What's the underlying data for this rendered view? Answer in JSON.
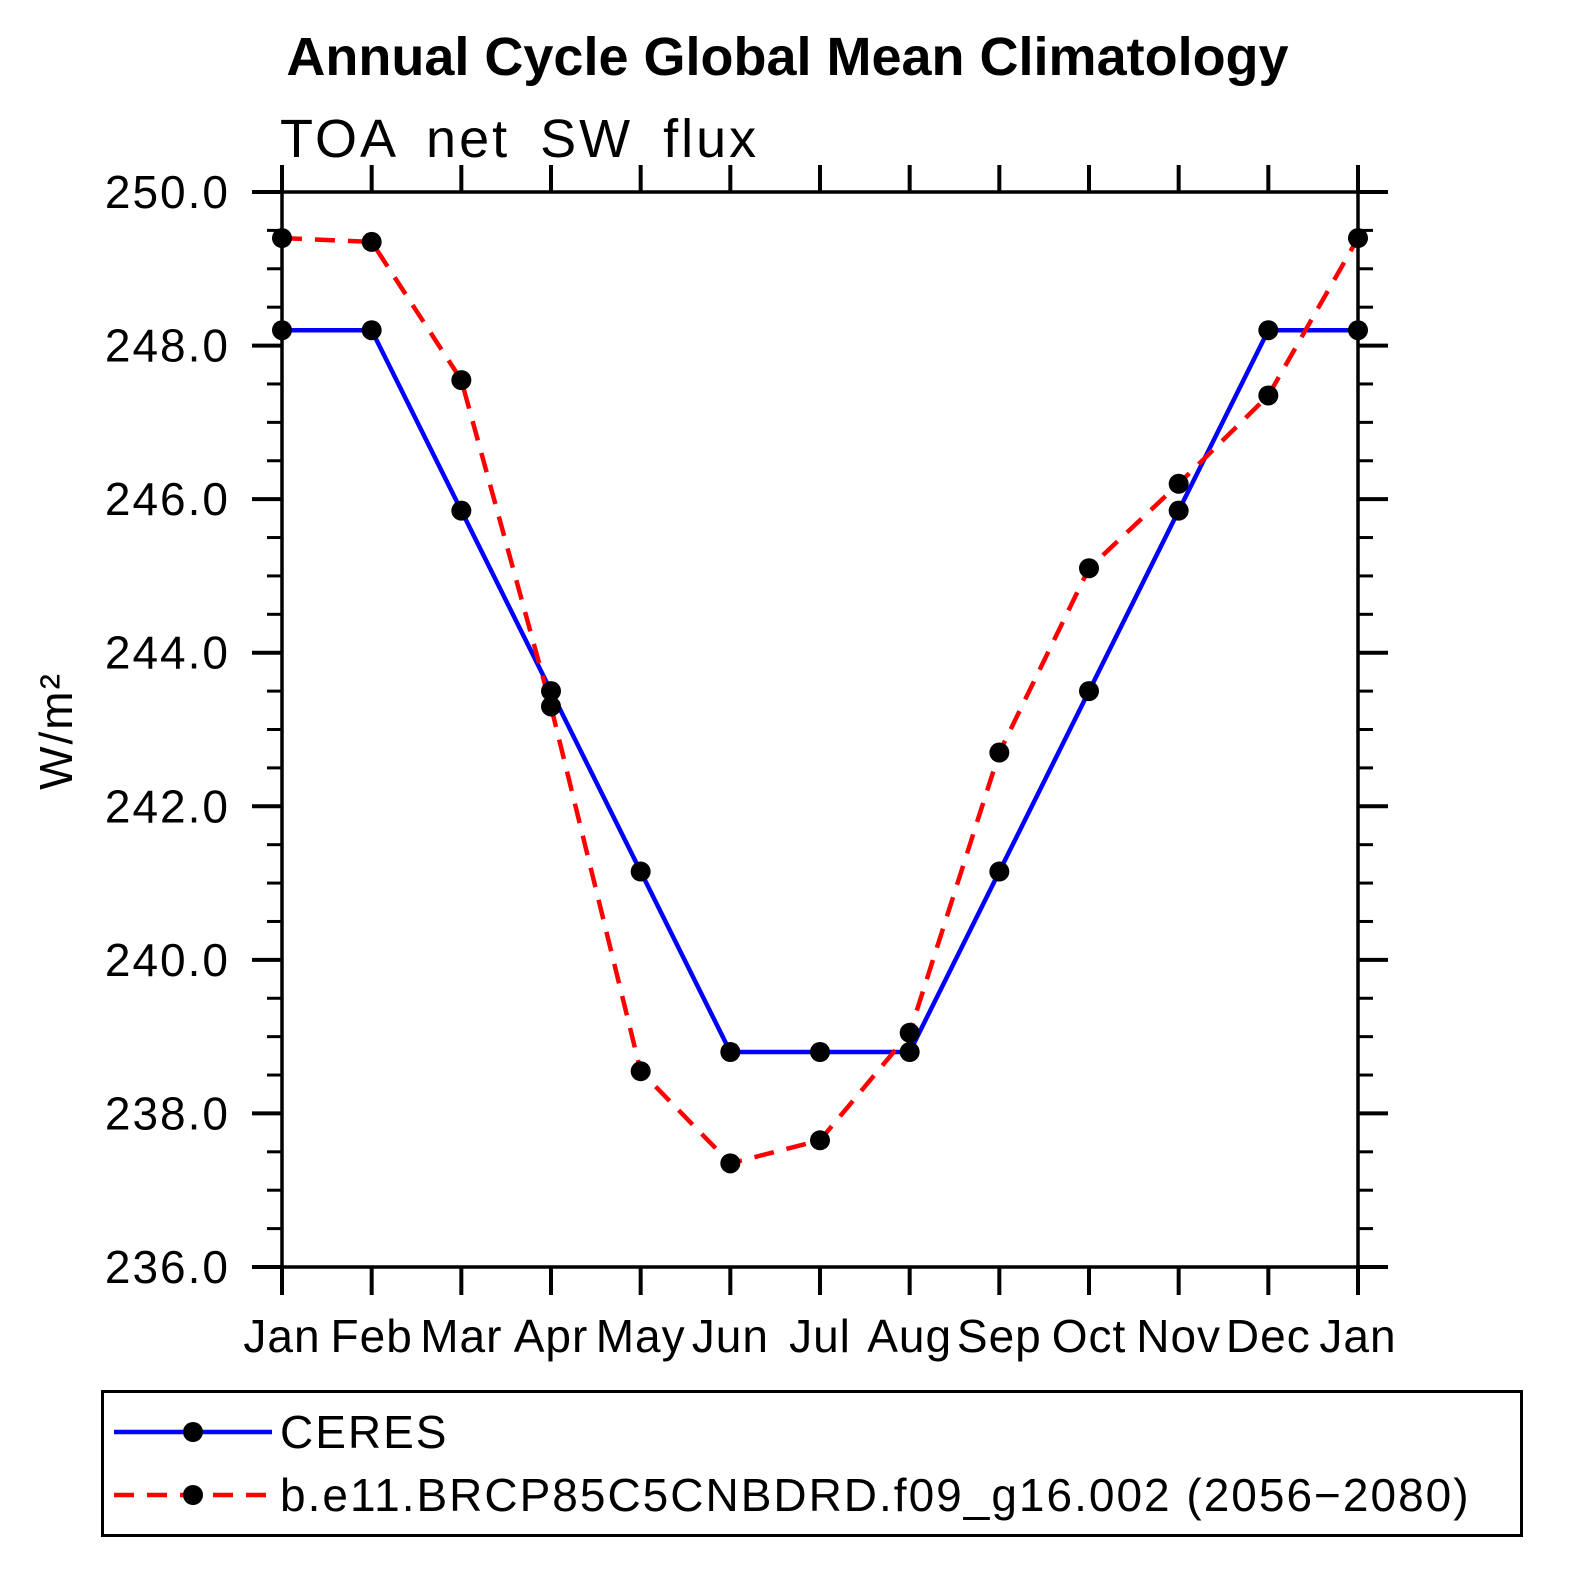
{
  "title": "Annual Cycle Global Mean Climatology",
  "chart_data": {
    "type": "line",
    "subtitle": "TOA net SW flux",
    "ylabel": "W/m²",
    "xlabel": "",
    "categories": [
      "Jan",
      "Feb",
      "Mar",
      "Apr",
      "May",
      "Jun",
      "Jul",
      "Aug",
      "Sep",
      "Oct",
      "Nov",
      "Dec",
      "Jan"
    ],
    "ylim": [
      236.0,
      250.0
    ],
    "ytick_step": 2.0,
    "yminor_step": 0.5,
    "ytick_decimals": 1,
    "grid": false,
    "axis_color": "#000000",
    "background_color": "#ffffff",
    "legend_position": "bottom-box",
    "series": [
      {
        "name": "CERES",
        "color": "#0000ff",
        "line_style": "solid",
        "marker": "filled-circle",
        "marker_color": "#000000",
        "values": [
          248.2,
          248.2,
          245.85,
          243.5,
          241.15,
          238.8,
          238.8,
          238.8,
          241.15,
          243.5,
          245.85,
          248.2,
          248.2
        ]
      },
      {
        "name": "b.e11.BRCP85C5CNBDRD.f09_g16.002 (2056−2080)",
        "color": "#ff0000",
        "line_style": "dashed",
        "marker": "filled-circle",
        "marker_color": "#000000",
        "values": [
          249.4,
          249.35,
          247.55,
          243.3,
          238.55,
          237.35,
          237.65,
          239.05,
          242.7,
          245.1,
          246.2,
          247.35,
          249.4
        ]
      }
    ]
  }
}
